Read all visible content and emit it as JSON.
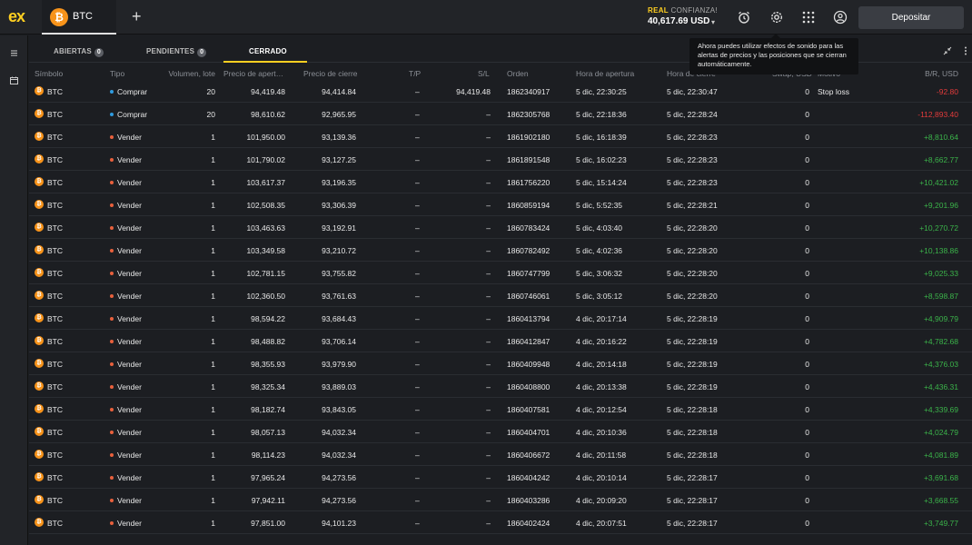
{
  "header": {
    "logo": "ex",
    "active_tab": {
      "coin_symbol": "₿",
      "label": "BTC"
    },
    "new_tab": "+",
    "account": {
      "mode": "REAL",
      "mode_sub": "CONFIANZA!",
      "balance": "40,617.69 USD",
      "caret": "▾"
    },
    "deposit_label": "Depositar",
    "icons": [
      "alarm-icon",
      "settings-icon",
      "apps-grid-icon",
      "user-icon"
    ]
  },
  "tooltip": {
    "text": "Ahora puedes utilizar efectos de sonido para las alertas de precios y las posiciones que se cierran automáticamente."
  },
  "tabs": [
    {
      "label": "ABIERTAS",
      "count": "0"
    },
    {
      "label": "PENDIENTES",
      "count": "0"
    },
    {
      "label": "CERRADO"
    }
  ],
  "columns": {
    "symbol": "Símbolo",
    "type": "Tipo",
    "volume": "Volumen, lote",
    "open_price": "Precio de apert…",
    "close_price": "Precio de cierre",
    "tp": "T/P",
    "sl": "S/L",
    "order": "Orden",
    "open_time": "Hora de apertura",
    "close_time": "Hora de cierre",
    "swap": "Swap, USD",
    "reason": "Motivo",
    "pnl": "B/R, USD"
  },
  "colors": {
    "buy": "#2f9be0",
    "sell": "#e8603c",
    "positive": "#3bb34a",
    "negative": "#e23b3b",
    "accent": "#ffcf21"
  },
  "rows": [
    {
      "sym": "BTC",
      "type": "Comprar",
      "vol": "20",
      "open": "94,419.48",
      "close": "94,414.84",
      "tp": "–",
      "sl": "94,419.48",
      "order": "1862340917",
      "otime": "5 dic, 22:30:25",
      "ctime": "5 dic, 22:30:47",
      "swap": "0",
      "reason": "Stop loss",
      "pnl": "-92.80",
      "sign": "neg"
    },
    {
      "sym": "BTC",
      "type": "Comprar",
      "vol": "20",
      "open": "98,610.62",
      "close": "92,965.95",
      "tp": "–",
      "sl": "–",
      "order": "1862305768",
      "otime": "5 dic, 22:18:36",
      "ctime": "5 dic, 22:28:24",
      "swap": "0",
      "reason": "",
      "pnl": "-112,893.40",
      "sign": "neg"
    },
    {
      "sym": "BTC",
      "type": "Vender",
      "vol": "1",
      "open": "101,950.00",
      "close": "93,139.36",
      "tp": "–",
      "sl": "–",
      "order": "1861902180",
      "otime": "5 dic, 16:18:39",
      "ctime": "5 dic, 22:28:23",
      "swap": "0",
      "reason": "",
      "pnl": "+8,810.64",
      "sign": "pos"
    },
    {
      "sym": "BTC",
      "type": "Vender",
      "vol": "1",
      "open": "101,790.02",
      "close": "93,127.25",
      "tp": "–",
      "sl": "–",
      "order": "1861891548",
      "otime": "5 dic, 16:02:23",
      "ctime": "5 dic, 22:28:23",
      "swap": "0",
      "reason": "",
      "pnl": "+8,662.77",
      "sign": "pos"
    },
    {
      "sym": "BTC",
      "type": "Vender",
      "vol": "1",
      "open": "103,617.37",
      "close": "93,196.35",
      "tp": "–",
      "sl": "–",
      "order": "1861756220",
      "otime": "5 dic, 15:14:24",
      "ctime": "5 dic, 22:28:23",
      "swap": "0",
      "reason": "",
      "pnl": "+10,421.02",
      "sign": "pos"
    },
    {
      "sym": "BTC",
      "type": "Vender",
      "vol": "1",
      "open": "102,508.35",
      "close": "93,306.39",
      "tp": "–",
      "sl": "–",
      "order": "1860859194",
      "otime": "5 dic, 5:52:35",
      "ctime": "5 dic, 22:28:21",
      "swap": "0",
      "reason": "",
      "pnl": "+9,201.96",
      "sign": "pos"
    },
    {
      "sym": "BTC",
      "type": "Vender",
      "vol": "1",
      "open": "103,463.63",
      "close": "93,192.91",
      "tp": "–",
      "sl": "–",
      "order": "1860783424",
      "otime": "5 dic, 4:03:40",
      "ctime": "5 dic, 22:28:20",
      "swap": "0",
      "reason": "",
      "pnl": "+10,270.72",
      "sign": "pos"
    },
    {
      "sym": "BTC",
      "type": "Vender",
      "vol": "1",
      "open": "103,349.58",
      "close": "93,210.72",
      "tp": "–",
      "sl": "–",
      "order": "1860782492",
      "otime": "5 dic, 4:02:36",
      "ctime": "5 dic, 22:28:20",
      "swap": "0",
      "reason": "",
      "pnl": "+10,138.86",
      "sign": "pos"
    },
    {
      "sym": "BTC",
      "type": "Vender",
      "vol": "1",
      "open": "102,781.15",
      "close": "93,755.82",
      "tp": "–",
      "sl": "–",
      "order": "1860747799",
      "otime": "5 dic, 3:06:32",
      "ctime": "5 dic, 22:28:20",
      "swap": "0",
      "reason": "",
      "pnl": "+9,025.33",
      "sign": "pos"
    },
    {
      "sym": "BTC",
      "type": "Vender",
      "vol": "1",
      "open": "102,360.50",
      "close": "93,761.63",
      "tp": "–",
      "sl": "–",
      "order": "1860746061",
      "otime": "5 dic, 3:05:12",
      "ctime": "5 dic, 22:28:20",
      "swap": "0",
      "reason": "",
      "pnl": "+8,598.87",
      "sign": "pos"
    },
    {
      "sym": "BTC",
      "type": "Vender",
      "vol": "1",
      "open": "98,594.22",
      "close": "93,684.43",
      "tp": "–",
      "sl": "–",
      "order": "1860413794",
      "otime": "4 dic, 20:17:14",
      "ctime": "5 dic, 22:28:19",
      "swap": "0",
      "reason": "",
      "pnl": "+4,909.79",
      "sign": "pos"
    },
    {
      "sym": "BTC",
      "type": "Vender",
      "vol": "1",
      "open": "98,488.82",
      "close": "93,706.14",
      "tp": "–",
      "sl": "–",
      "order": "1860412847",
      "otime": "4 dic, 20:16:22",
      "ctime": "5 dic, 22:28:19",
      "swap": "0",
      "reason": "",
      "pnl": "+4,782.68",
      "sign": "pos"
    },
    {
      "sym": "BTC",
      "type": "Vender",
      "vol": "1",
      "open": "98,355.93",
      "close": "93,979.90",
      "tp": "–",
      "sl": "–",
      "order": "1860409948",
      "otime": "4 dic, 20:14:18",
      "ctime": "5 dic, 22:28:19",
      "swap": "0",
      "reason": "",
      "pnl": "+4,376.03",
      "sign": "pos"
    },
    {
      "sym": "BTC",
      "type": "Vender",
      "vol": "1",
      "open": "98,325.34",
      "close": "93,889.03",
      "tp": "–",
      "sl": "–",
      "order": "1860408800",
      "otime": "4 dic, 20:13:38",
      "ctime": "5 dic, 22:28:19",
      "swap": "0",
      "reason": "",
      "pnl": "+4,436.31",
      "sign": "pos"
    },
    {
      "sym": "BTC",
      "type": "Vender",
      "vol": "1",
      "open": "98,182.74",
      "close": "93,843.05",
      "tp": "–",
      "sl": "–",
      "order": "1860407581",
      "otime": "4 dic, 20:12:54",
      "ctime": "5 dic, 22:28:18",
      "swap": "0",
      "reason": "",
      "pnl": "+4,339.69",
      "sign": "pos"
    },
    {
      "sym": "BTC",
      "type": "Vender",
      "vol": "1",
      "open": "98,057.13",
      "close": "94,032.34",
      "tp": "–",
      "sl": "–",
      "order": "1860404701",
      "otime": "4 dic, 20:10:36",
      "ctime": "5 dic, 22:28:18",
      "swap": "0",
      "reason": "",
      "pnl": "+4,024.79",
      "sign": "pos"
    },
    {
      "sym": "BTC",
      "type": "Vender",
      "vol": "1",
      "open": "98,114.23",
      "close": "94,032.34",
      "tp": "–",
      "sl": "–",
      "order": "1860406672",
      "otime": "4 dic, 20:11:58",
      "ctime": "5 dic, 22:28:18",
      "swap": "0",
      "reason": "",
      "pnl": "+4,081.89",
      "sign": "pos"
    },
    {
      "sym": "BTC",
      "type": "Vender",
      "vol": "1",
      "open": "97,965.24",
      "close": "94,273.56",
      "tp": "–",
      "sl": "–",
      "order": "1860404242",
      "otime": "4 dic, 20:10:14",
      "ctime": "5 dic, 22:28:17",
      "swap": "0",
      "reason": "",
      "pnl": "+3,691.68",
      "sign": "pos"
    },
    {
      "sym": "BTC",
      "type": "Vender",
      "vol": "1",
      "open": "97,942.11",
      "close": "94,273.56",
      "tp": "–",
      "sl": "–",
      "order": "1860403286",
      "otime": "4 dic, 20:09:20",
      "ctime": "5 dic, 22:28:17",
      "swap": "0",
      "reason": "",
      "pnl": "+3,668.55",
      "sign": "pos"
    },
    {
      "sym": "BTC",
      "type": "Vender",
      "vol": "1",
      "open": "97,851.00",
      "close": "94,101.23",
      "tp": "–",
      "sl": "–",
      "order": "1860402424",
      "otime": "4 dic, 20:07:51",
      "ctime": "5 dic, 22:28:17",
      "swap": "0",
      "reason": "",
      "pnl": "+3,749.77",
      "sign": "pos"
    }
  ]
}
